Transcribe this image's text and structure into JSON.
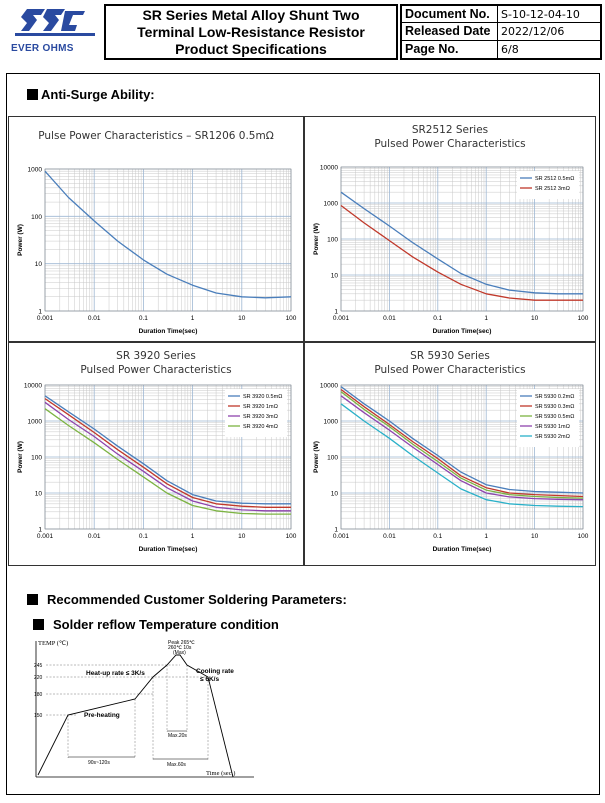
{
  "header": {
    "logo_text": "EVER OHMS",
    "title_lines": [
      "SR Series Metal Alloy Shunt Two",
      "Terminal Low-Resistance Resistor",
      "Product Specifications"
    ],
    "document_no_label": "Document No.",
    "document_no": "S-10-12-04-10",
    "released_label": "Released Date",
    "released": "2022/12/06",
    "page_label": "Page No.",
    "page": "6/8"
  },
  "sections": {
    "anti_surge": "Anti-Surge Ability:",
    "soldering": "Recommended Customer Soldering Parameters:",
    "reflow": "Solder reflow Temperature condition"
  },
  "chart_data": [
    {
      "type": "line",
      "title": "Pulse Power Characteristics – SR1206 0.5mΩ",
      "xlabel": "Duration Time(sec)",
      "ylabel": "Power (W)",
      "x_scale": "log",
      "y_scale": "log",
      "xlim": [
        0.001,
        100
      ],
      "ylim": [
        1,
        1000
      ],
      "x_ticks": [
        "0.001",
        "0.01",
        "0.1",
        "1",
        "10",
        "100"
      ],
      "y_ticks": [
        "1",
        "10",
        "100",
        "1000"
      ],
      "legend": "none",
      "series": [
        {
          "color": "#4a7ebb",
          "x": [
            0.001,
            0.003,
            0.01,
            0.03,
            0.1,
            0.3,
            1,
            3,
            10,
            30,
            100
          ],
          "y": [
            900,
            250,
            80,
            30,
            12,
            6,
            3.5,
            2.4,
            2.0,
            1.9,
            2.0
          ]
        }
      ]
    },
    {
      "type": "line",
      "title": [
        "SR2512 Series",
        "Pulsed Power Characteristics"
      ],
      "xlabel": "Duration Time(sec)",
      "ylabel": "Power (W)",
      "x_scale": "log",
      "y_scale": "log",
      "xlim": [
        0.001,
        100
      ],
      "ylim": [
        1,
        10000
      ],
      "x_ticks": [
        "0.001",
        "0.01",
        "0.1",
        "1",
        "10",
        "100"
      ],
      "y_ticks": [
        "1",
        "10",
        "100",
        "1000",
        "10000"
      ],
      "legend": "top-right",
      "series": [
        {
          "name": "SR 2512 0.5mΩ",
          "color": "#4a7ebb",
          "x": [
            0.001,
            0.003,
            0.01,
            0.03,
            0.1,
            0.3,
            1,
            3,
            10,
            30,
            100
          ],
          "y": [
            2000,
            700,
            230,
            80,
            28,
            11,
            5.5,
            3.8,
            3.2,
            3.0,
            3.0
          ]
        },
        {
          "name": "SR 2512 3mΩ",
          "color": "#c0392b",
          "x": [
            0.001,
            0.003,
            0.01,
            0.03,
            0.1,
            0.3,
            1,
            3,
            10,
            30,
            100
          ],
          "y": [
            850,
            280,
            90,
            32,
            12,
            5.5,
            3.0,
            2.3,
            2.0,
            2.0,
            2.0
          ]
        }
      ]
    },
    {
      "type": "line",
      "title": [
        "SR 3920 Series",
        "Pulsed Power Characteristics"
      ],
      "xlabel": "Duration Time(sec)",
      "ylabel": "Power (W)",
      "x_scale": "log",
      "y_scale": "log",
      "xlim": [
        0.001,
        100
      ],
      "ylim": [
        1,
        10000
      ],
      "x_ticks": [
        "0.001",
        "0.01",
        "0.1",
        "1",
        "10",
        "100"
      ],
      "y_ticks": [
        "1",
        "10",
        "100",
        "1000",
        "10000"
      ],
      "legend": "top-right",
      "series": [
        {
          "name": "SR 3920 0.5mΩ",
          "color": "#4a7ebb",
          "x": [
            0.001,
            0.003,
            0.01,
            0.03,
            0.1,
            0.3,
            1,
            3,
            10,
            30,
            100
          ],
          "y": [
            5000,
            1800,
            600,
            200,
            65,
            22,
            9,
            6,
            5.2,
            5,
            5
          ]
        },
        {
          "name": "SR 3920 1mΩ",
          "color": "#c0392b",
          "x": [
            0.001,
            0.003,
            0.01,
            0.03,
            0.1,
            0.3,
            1,
            3,
            10,
            30,
            100
          ],
          "y": [
            4200,
            1500,
            480,
            160,
            52,
            18,
            7.5,
            5,
            4.3,
            4,
            4
          ]
        },
        {
          "name": "SR 3920 3mΩ",
          "color": "#8e44ad",
          "x": [
            0.001,
            0.003,
            0.01,
            0.03,
            0.1,
            0.3,
            1,
            3,
            10,
            30,
            100
          ],
          "y": [
            3300,
            1100,
            370,
            120,
            40,
            14,
            6,
            4,
            3.4,
            3.2,
            3.2
          ]
        },
        {
          "name": "SR 3920 4mΩ",
          "color": "#7cb342",
          "x": [
            0.001,
            0.003,
            0.01,
            0.03,
            0.1,
            0.3,
            1,
            3,
            10,
            30,
            100
          ],
          "y": [
            2200,
            750,
            250,
            85,
            28,
            10,
            4.5,
            3.2,
            2.7,
            2.6,
            2.6
          ]
        }
      ]
    },
    {
      "type": "line",
      "title": [
        "SR 5930 Series",
        "Pulsed Power Characteristics"
      ],
      "xlabel": "Duration Time(sec)",
      "ylabel": "Power (W)",
      "x_scale": "log",
      "y_scale": "log",
      "xlim": [
        0.001,
        100
      ],
      "ylim": [
        1,
        10000
      ],
      "x_ticks": [
        "0.001",
        "0.01",
        "0.1",
        "1",
        "10",
        "100"
      ],
      "y_ticks": [
        "1",
        "10",
        "100",
        "1000",
        "10000"
      ],
      "legend": "top-right",
      "series": [
        {
          "name": "SR 5930 0.2mΩ",
          "color": "#4a7ebb",
          "x": [
            0.001,
            0.003,
            0.01,
            0.03,
            0.1,
            0.3,
            1,
            3,
            10,
            30,
            100
          ],
          "y": [
            9000,
            3000,
            1000,
            330,
            110,
            38,
            17,
            12.5,
            11,
            10.5,
            10
          ]
        },
        {
          "name": "SR 5930 0.3mΩ",
          "color": "#c0392b",
          "x": [
            0.001,
            0.003,
            0.01,
            0.03,
            0.1,
            0.3,
            1,
            3,
            10,
            30,
            100
          ],
          "y": [
            7500,
            2500,
            800,
            270,
            90,
            30,
            14,
            10,
            9,
            8.5,
            8
          ]
        },
        {
          "name": "SR 5930 0.5mΩ",
          "color": "#7cb342",
          "x": [
            0.001,
            0.003,
            0.01,
            0.03,
            0.1,
            0.3,
            1,
            3,
            10,
            30,
            100
          ],
          "y": [
            6500,
            2100,
            700,
            230,
            75,
            26,
            12,
            9,
            8,
            7.5,
            7.2
          ]
        },
        {
          "name": "SR 5930 1mΩ",
          "color": "#8e44ad",
          "x": [
            0.001,
            0.003,
            0.01,
            0.03,
            0.1,
            0.3,
            1,
            3,
            10,
            30,
            100
          ],
          "y": [
            5000,
            1700,
            560,
            190,
            62,
            22,
            10,
            7.8,
            7,
            6.7,
            6.5
          ]
        },
        {
          "name": "SR 5930 2mΩ",
          "color": "#2ab0c8",
          "x": [
            0.001,
            0.003,
            0.01,
            0.03,
            0.1,
            0.3,
            1,
            3,
            10,
            30,
            100
          ],
          "y": [
            3000,
            1000,
            330,
            110,
            36,
            13,
            6.5,
            5,
            4.5,
            4.3,
            4.2
          ]
        }
      ]
    }
  ],
  "reflow": {
    "y_label": "TEMP (℃)",
    "x_label": "Time (sec.)",
    "temps": [
      "245",
      "220",
      "180",
      "150"
    ],
    "peak": [
      "Peak 265℃",
      "260℃ 10s",
      "(Max)"
    ],
    "heat_up": "Heat-up rate ≤ 3K/s",
    "cooling": [
      "Cooling rate",
      "≤ 6K/s"
    ],
    "preheat": "Pre-heating",
    "pre_time": "90s~120s",
    "max20": "Max.20s",
    "max60": "Max.60s"
  }
}
